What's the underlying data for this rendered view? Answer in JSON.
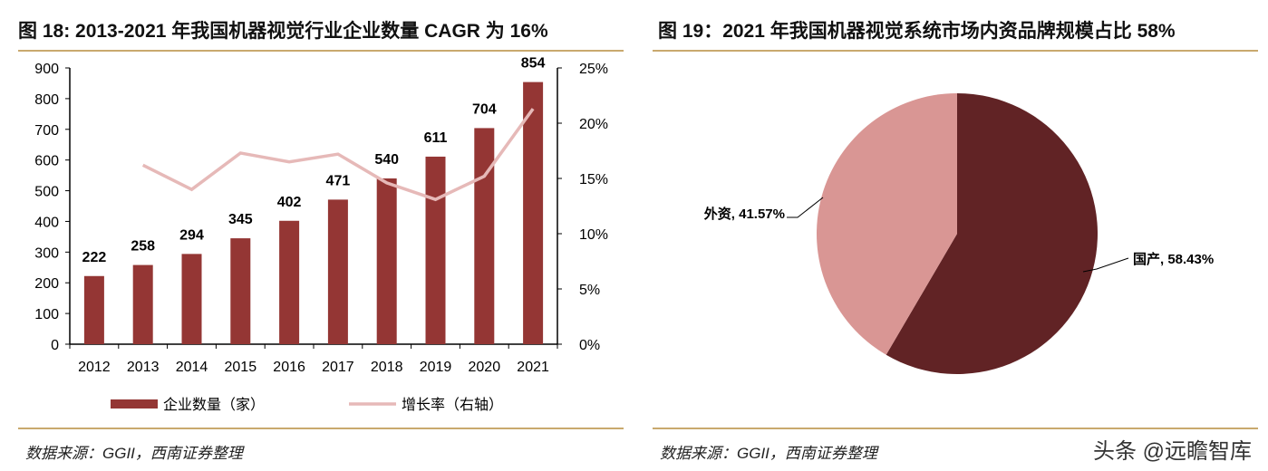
{
  "chart_data": [
    {
      "type": "bar+line",
      "title": "图 18: 2013-2021 年我国机器视觉行业企业数量 CAGR 为 16%",
      "categories": [
        "2012",
        "2013",
        "2014",
        "2015",
        "2016",
        "2017",
        "2018",
        "2019",
        "2020",
        "2021"
      ],
      "series": [
        {
          "name": "企业数量（家）",
          "type": "bar",
          "axis": "left",
          "values": [
            222,
            258,
            294,
            345,
            402,
            471,
            540,
            611,
            704,
            854
          ],
          "color": "#943634"
        },
        {
          "name": "增长率（右轴）",
          "type": "line",
          "axis": "right",
          "values": [
            null,
            16.2,
            14.0,
            17.3,
            16.5,
            17.2,
            14.6,
            13.1,
            15.2,
            21.3
          ],
          "color": "#e6b9b8"
        }
      ],
      "ylim": [
        0,
        900
      ],
      "yticks": [
        "0",
        "100",
        "200",
        "300",
        "400",
        "500",
        "600",
        "700",
        "800",
        "900"
      ],
      "y2lim": [
        0,
        25
      ],
      "y2ticks": [
        "0%",
        "5%",
        "10%",
        "15%",
        "20%",
        "25%"
      ],
      "grid": false,
      "legend": "bottom",
      "source": "数据来源：GGII，西南证券整理"
    },
    {
      "type": "pie",
      "title": "图 19：2021 年我国机器视觉系统市场内资品牌规模占比 58%",
      "slices": [
        {
          "label": "国产, 58.43%",
          "value": 58.43,
          "color": "#612325"
        },
        {
          "label": "外资, 41.57%",
          "value": 41.57,
          "color": "#d99694"
        }
      ],
      "source": "数据来源：GGII，西南证券整理"
    }
  ],
  "watermark": "头条 @远瞻智库"
}
